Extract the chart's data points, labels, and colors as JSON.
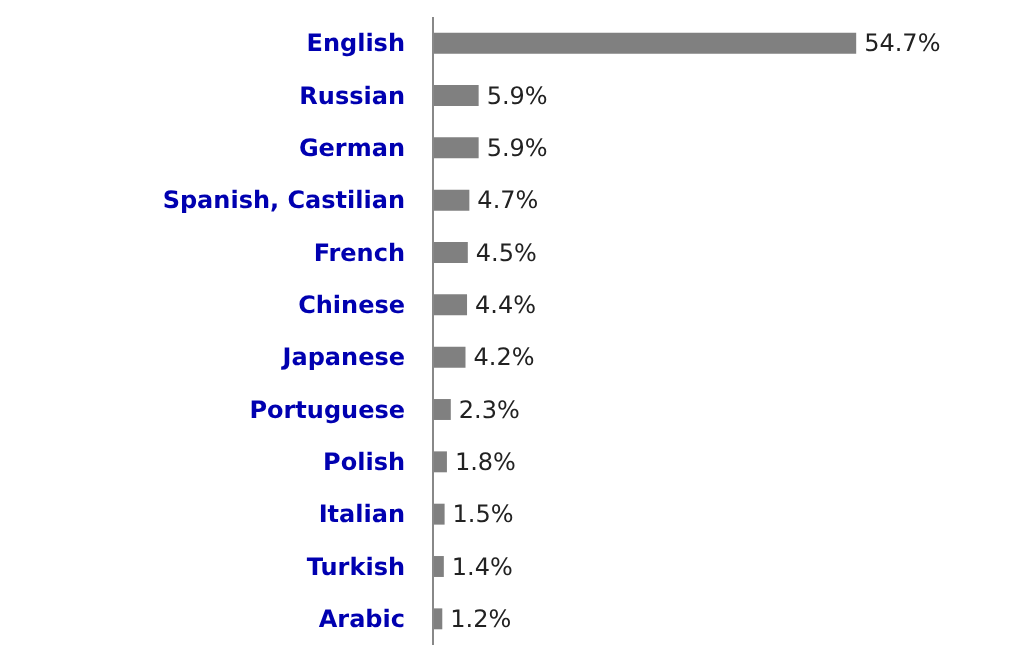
{
  "chart_data": {
    "type": "bar",
    "orientation": "horizontal",
    "categories": [
      "English",
      "Russian",
      "German",
      "Spanish, Castilian",
      "French",
      "Chinese",
      "Japanese",
      "Portuguese",
      "Polish",
      "Italian",
      "Turkish",
      "Arabic"
    ],
    "values": [
      54.7,
      5.9,
      5.9,
      4.7,
      4.5,
      4.4,
      4.2,
      2.3,
      1.8,
      1.5,
      1.4,
      1.2
    ],
    "value_labels": [
      "54.7%",
      "5.9%",
      "5.9%",
      "4.7%",
      "4.5%",
      "4.4%",
      "4.2%",
      "2.3%",
      "1.8%",
      "1.5%",
      "1.4%",
      "1.2%"
    ],
    "color": "#808080",
    "tick_labels": "y",
    "grid": false
  }
}
